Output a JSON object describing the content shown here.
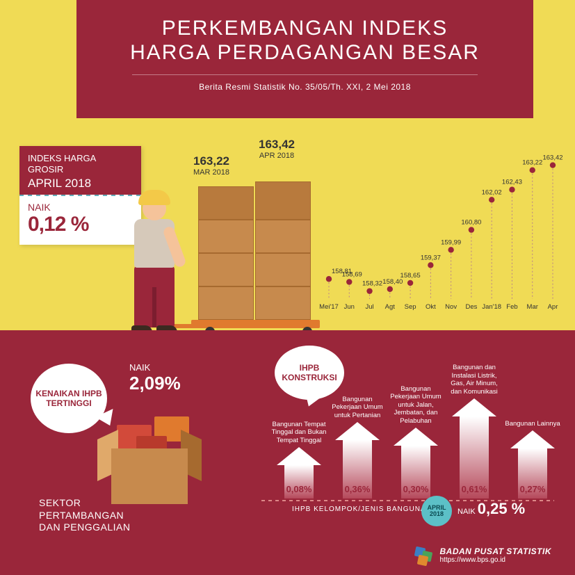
{
  "header": {
    "title_line1": "PERKEMBANGAN INDEKS",
    "title_line2": "HARGA PERDAGANGAN BESAR",
    "subtitle": "Berita Resmi Statistik No. 35/05/Th. XXI, 2 Mei 2018"
  },
  "card": {
    "line1": "INDEKS HARGA GROSIR",
    "month": "APRIL 2018",
    "naik_label": "NAIK",
    "pct": "0,12 %"
  },
  "callouts": {
    "mar": {
      "value": "163,22",
      "label": "MAR 2018"
    },
    "apr": {
      "value": "163,42",
      "label": "APR 2018"
    }
  },
  "chart": {
    "type": "scatter-line",
    "x_labels": [
      "Mei'17",
      "Jun",
      "Jul",
      "Agt",
      "Sep",
      "Okt",
      "Nov",
      "Des",
      "Jan'18",
      "Feb",
      "Mar",
      "Apr"
    ],
    "values": [
      158.81,
      158.69,
      158.32,
      158.4,
      158.65,
      159.37,
      159.99,
      160.8,
      162.02,
      162.43,
      163.22,
      163.42
    ],
    "value_labels": [
      "158,81",
      "158,69",
      "158,32",
      "158,40",
      "158,65",
      "159,37",
      "159,99",
      "160,80",
      "162,02",
      "162,43",
      "163,22",
      "163,42"
    ],
    "y_min": 158.0,
    "y_max": 164.0,
    "point_color": "#9a263a",
    "line_color_dashed": "#b8808a",
    "label_fontsize": 9.5,
    "background": "#f0db55"
  },
  "bottom": {
    "bubble_left": "KENAIKAN IHPB TERTINGGI",
    "naik209_label": "NAIK",
    "naik209_value": "2,09%",
    "sektor": "SEKTOR\nPERTAMBANGAN\nDAN PENGGALIAN",
    "bubble_right": "IHPB KONSTRUKSI",
    "arrows": [
      {
        "label": "Bangunan Tempat Tinggal dan Bukan Tempat Tinggal",
        "value": "0,08%",
        "height": 48
      },
      {
        "label": "Bangunan Pekerjaan Umum untuk Pertanian",
        "value": "0,36%",
        "height": 84
      },
      {
        "label": "Bangunan Pekerjaan Umum untuk Jalan, Jembatan, dan Pelabuhan",
        "value": "0,30%",
        "height": 76
      },
      {
        "label": "Bangunan dan Instalasi Listrik, Gas, Air Minum, dan Komunikasi",
        "value": "0,61%",
        "height": 118
      },
      {
        "label": "Bangunan Lainnya",
        "value": "0,27%",
        "height": 72
      }
    ],
    "ihpb_line_label": "IHPB KELOMPOK/JENIS BANGUNAN",
    "badge_top": "APRIL",
    "badge_bot": "2018",
    "naik025_label": "NAIK",
    "naik025_value": "0,25 %"
  },
  "footer": {
    "org": "BADAN PUSAT STATISTIK",
    "url": "https://www.bps.go.id"
  },
  "colors": {
    "yellow": "#f0db55",
    "maroon": "#9a263a",
    "teal": "#5cc0c7",
    "box": "#c78a4d"
  }
}
